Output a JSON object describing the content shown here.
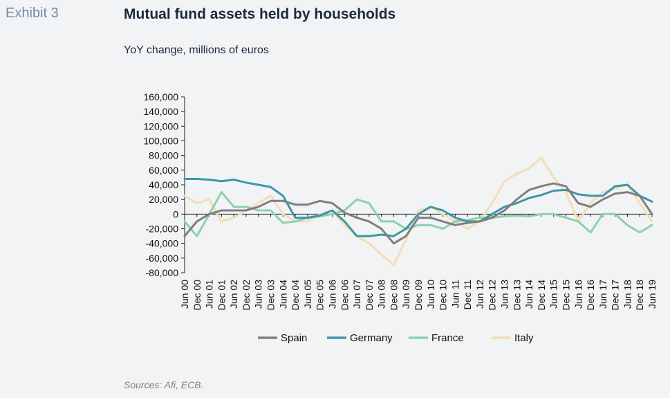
{
  "header": {
    "exhibit": "Exhibit 3",
    "title": "Mutual fund assets held by households",
    "subtitle": "YoY change, millions of euros"
  },
  "footer": {
    "sources": "Sources: Afi, ECB."
  },
  "chart_data": {
    "type": "line",
    "title": "Mutual fund assets held by households",
    "subtitle": "YoY change, millions of euros",
    "xlabel": "",
    "ylabel": "",
    "ylim": [
      -80000,
      160000
    ],
    "yticks": [
      160000,
      140000,
      120000,
      100000,
      80000,
      60000,
      40000,
      20000,
      0,
      -20000,
      -40000,
      -60000,
      -80000
    ],
    "ytick_labels": [
      "160,000",
      "140,000",
      "120,000",
      "100,000",
      "80,000",
      "60,000",
      "40,000",
      "20,000",
      "0",
      "-20,000",
      "-40,000",
      "-60,000",
      "-80,000"
    ],
    "grid": false,
    "legend_position": "bottom",
    "x": [
      "Jun 00",
      "Dec 00",
      "Jun 01",
      "Dec 01",
      "Jun 02",
      "Dec 02",
      "Jun 03",
      "Dec 03",
      "Jun 04",
      "Dec 04",
      "Jun 05",
      "Dec 05",
      "Jun 06",
      "Dec 06",
      "Jun 07",
      "Dec 07",
      "Jun 08",
      "Dec 08",
      "Jun 09",
      "Dec 09",
      "Jun 10",
      "Dec 10",
      "Jun 11",
      "Dec 11",
      "Jun 12",
      "Dec 12",
      "Jun 13",
      "Dec 13",
      "Jun 14",
      "Dec 14",
      "Jun 15",
      "Dec 15",
      "Jun 16",
      "Dec 16",
      "Jun 17",
      "Dec 17",
      "Jun 18",
      "Dec 18",
      "Jun 19"
    ],
    "series": [
      {
        "name": "Spain",
        "color": "#7f7f7f",
        "values": [
          -30000,
          -10000,
          0,
          5000,
          5000,
          5000,
          10000,
          18000,
          18000,
          13000,
          13000,
          18000,
          15000,
          2000,
          -5000,
          -10000,
          -20000,
          -40000,
          -30000,
          -5000,
          -5000,
          -10000,
          -15000,
          -12000,
          -10000,
          -5000,
          5000,
          20000,
          33000,
          38000,
          42000,
          38000,
          15000,
          10000,
          20000,
          28000,
          30000,
          25000,
          0
        ]
      },
      {
        "name": "Germany",
        "color": "#3d97a6",
        "values": [
          48000,
          48000,
          47000,
          45000,
          47000,
          43000,
          40000,
          37000,
          25000,
          -5000,
          -5000,
          -2000,
          5000,
          -10000,
          -30000,
          -30000,
          -28000,
          -30000,
          -20000,
          0,
          10000,
          5000,
          -5000,
          -10000,
          -10000,
          0,
          10000,
          15000,
          22000,
          26000,
          32000,
          33000,
          27000,
          25000,
          25000,
          38000,
          40000,
          25000,
          17000
        ]
      },
      {
        "name": "France",
        "color": "#8fcfaf",
        "values": [
          -10000,
          -30000,
          0,
          30000,
          10000,
          10000,
          5000,
          5000,
          -12000,
          -10000,
          -5000,
          -3000,
          0,
          5000,
          20000,
          15000,
          -10000,
          -10000,
          -20000,
          -15000,
          -15000,
          -20000,
          -10000,
          -8000,
          -5000,
          -5000,
          -3000,
          -2000,
          -3000,
          0,
          0,
          -5000,
          -10000,
          -25000,
          0,
          0,
          -15000,
          -25000,
          -15000
        ]
      },
      {
        "name": "Italy",
        "color": "#f1dfb4",
        "values": [
          25000,
          15000,
          20000,
          -10000,
          -5000,
          5000,
          15000,
          25000,
          0,
          -10000,
          -10000,
          0,
          5000,
          -15000,
          -30000,
          -40000,
          -55000,
          -70000,
          -35000,
          5000,
          10000,
          0,
          -10000,
          -20000,
          -10000,
          15000,
          45000,
          55000,
          62000,
          77000,
          50000,
          30000,
          -10000,
          15000,
          30000,
          35000,
          40000,
          15000,
          -10000
        ]
      }
    ]
  }
}
